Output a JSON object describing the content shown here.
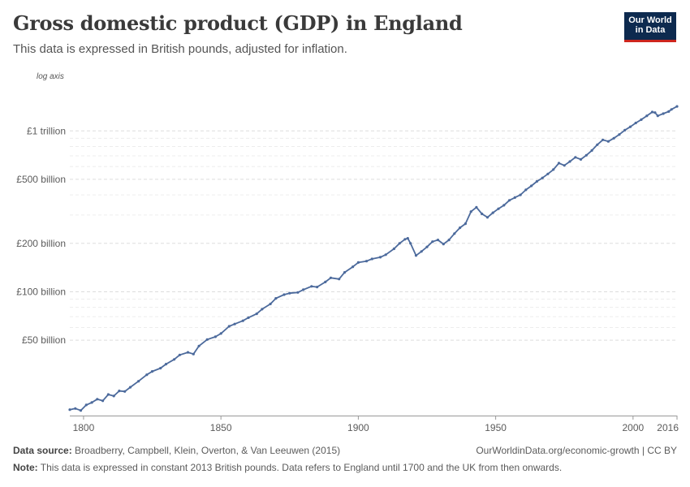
{
  "header": {
    "title": "Gross domestic product (GDP) in England",
    "subtitle": "This data is expressed in British pounds, adjusted for inflation.",
    "logo_line1": "Our World",
    "logo_line2": "in Data"
  },
  "footer": {
    "source_label": "Data source:",
    "source_text": "Broadberry, Campbell, Klein, Overton, & Van Leeuwen (2015)",
    "url_text": "OurWorldinData.org/economic-growth | CC BY",
    "note_label": "Note:",
    "note_text": "This data is expressed in constant 2013 British pounds. Data refers to England until 1700 and the UK from then onwards."
  },
  "chart_data": {
    "type": "line",
    "title": "Gross domestic product (GDP) in England",
    "subtitle": "This data is expressed in British pounds, adjusted for inflation.",
    "axis_note": "log axis",
    "y_scale": "log",
    "ylim": [
      17,
      1900
    ],
    "xlim": [
      1795,
      2016
    ],
    "y_ticks": [
      {
        "value": 50,
        "label": "£50 billion"
      },
      {
        "value": 100,
        "label": "£100 billion"
      },
      {
        "value": 200,
        "label": "£200 billion"
      },
      {
        "value": 500,
        "label": "£500 billion"
      },
      {
        "value": 1000,
        "label": "£1 trillion"
      }
    ],
    "minor_y_ticks": [
      60,
      70,
      80,
      90,
      300,
      400,
      600,
      700,
      800,
      900
    ],
    "x_ticks": [
      {
        "value": 1800,
        "label": "1800"
      },
      {
        "value": 1850,
        "label": "1850"
      },
      {
        "value": 1900,
        "label": "1900"
      },
      {
        "value": 1950,
        "label": "1950"
      },
      {
        "value": 2000,
        "label": "2000"
      },
      {
        "value": 2016,
        "label": "2016"
      }
    ],
    "series": [
      {
        "color": "#4c6a9c",
        "units": "GBP billion (2013 prices)",
        "points": [
          [
            1795,
            18.5
          ],
          [
            1797,
            18.8
          ],
          [
            1799,
            18.3
          ],
          [
            1801,
            19.8
          ],
          [
            1803,
            20.5
          ],
          [
            1805,
            21.5
          ],
          [
            1807,
            21.0
          ],
          [
            1809,
            23.0
          ],
          [
            1811,
            22.5
          ],
          [
            1813,
            24.2
          ],
          [
            1815,
            24.0
          ],
          [
            1817,
            25.5
          ],
          [
            1820,
            27.8
          ],
          [
            1823,
            30.5
          ],
          [
            1825,
            32.0
          ],
          [
            1828,
            33.5
          ],
          [
            1830,
            35.5
          ],
          [
            1833,
            38.0
          ],
          [
            1835,
            40.5
          ],
          [
            1838,
            42.0
          ],
          [
            1840,
            41.0
          ],
          [
            1842,
            46.0
          ],
          [
            1845,
            50.5
          ],
          [
            1848,
            52.5
          ],
          [
            1850,
            55.0
          ],
          [
            1853,
            61.0
          ],
          [
            1855,
            63.0
          ],
          [
            1858,
            66.0
          ],
          [
            1860,
            69.0
          ],
          [
            1863,
            73.0
          ],
          [
            1865,
            78.0
          ],
          [
            1868,
            84.0
          ],
          [
            1870,
            91.0
          ],
          [
            1873,
            96.0
          ],
          [
            1875,
            98.0
          ],
          [
            1878,
            99.0
          ],
          [
            1880,
            103.0
          ],
          [
            1883,
            108.0
          ],
          [
            1885,
            107.0
          ],
          [
            1888,
            115.0
          ],
          [
            1890,
            122.0
          ],
          [
            1893,
            120.0
          ],
          [
            1895,
            132.0
          ],
          [
            1898,
            143.0
          ],
          [
            1900,
            152.0
          ],
          [
            1903,
            155.0
          ],
          [
            1905,
            160.0
          ],
          [
            1908,
            164.0
          ],
          [
            1910,
            170.0
          ],
          [
            1913,
            185.0
          ],
          [
            1915,
            200.0
          ],
          [
            1917,
            212.0
          ],
          [
            1918,
            215.0
          ],
          [
            1919,
            200.0
          ],
          [
            1921,
            168.0
          ],
          [
            1923,
            178.0
          ],
          [
            1925,
            190.0
          ],
          [
            1927,
            205.0
          ],
          [
            1929,
            210.0
          ],
          [
            1931,
            198.0
          ],
          [
            1933,
            210.0
          ],
          [
            1935,
            230.0
          ],
          [
            1937,
            250.0
          ],
          [
            1939,
            265.0
          ],
          [
            1941,
            315.0
          ],
          [
            1943,
            335.0
          ],
          [
            1945,
            305.0
          ],
          [
            1947,
            290.0
          ],
          [
            1949,
            310.0
          ],
          [
            1951,
            328.0
          ],
          [
            1953,
            345.0
          ],
          [
            1955,
            370.0
          ],
          [
            1957,
            385.0
          ],
          [
            1959,
            400.0
          ],
          [
            1961,
            430.0
          ],
          [
            1963,
            455.0
          ],
          [
            1965,
            485.0
          ],
          [
            1967,
            510.0
          ],
          [
            1969,
            540.0
          ],
          [
            1971,
            575.0
          ],
          [
            1973,
            630.0
          ],
          [
            1975,
            610.0
          ],
          [
            1977,
            645.0
          ],
          [
            1979,
            685.0
          ],
          [
            1981,
            665.0
          ],
          [
            1983,
            705.0
          ],
          [
            1985,
            755.0
          ],
          [
            1987,
            820.0
          ],
          [
            1989,
            880.0
          ],
          [
            1991,
            860.0
          ],
          [
            1993,
            900.0
          ],
          [
            1995,
            950.0
          ],
          [
            1997,
            1010.0
          ],
          [
            1999,
            1060.0
          ],
          [
            2001,
            1120.0
          ],
          [
            2003,
            1175.0
          ],
          [
            2005,
            1240.0
          ],
          [
            2007,
            1310.0
          ],
          [
            2008,
            1300.0
          ],
          [
            2009,
            1240.0
          ],
          [
            2011,
            1280.0
          ],
          [
            2013,
            1320.0
          ],
          [
            2014,
            1360.0
          ],
          [
            2016,
            1420.0
          ]
        ]
      }
    ]
  }
}
